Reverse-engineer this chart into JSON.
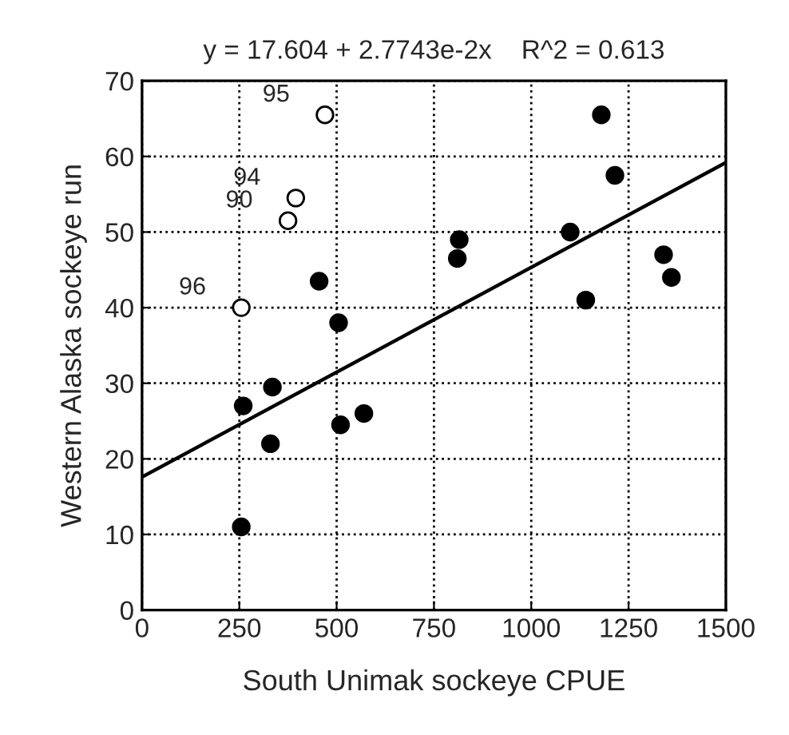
{
  "chart_data": {
    "type": "scatter",
    "title": "y = 17.604 + 2.7743e-2x    R^2 = 0.613",
    "xlabel": "South Unimak sockeye CPUE",
    "ylabel": "Western Alaska sockeye run",
    "series": [
      {
        "color": "#ffffff",
        "x": [
          470,
          395,
          375,
          255
        ],
        "values": [
          65.5,
          54.5,
          51.5,
          40
        ]
      },
      {
        "color": "#000000",
        "x": [
          455,
          505,
          260,
          335,
          330,
          510,
          570,
          255,
          810,
          815,
          1100,
          1180,
          1215,
          1140,
          1340,
          1360
        ],
        "values": [
          43.5,
          38,
          27,
          29.5,
          22,
          24.5,
          26,
          11,
          46.5,
          49,
          50,
          65.5,
          57.5,
          41,
          47,
          44
        ]
      },
      {
        "type": "line",
        "marker": "none",
        "color": "#000000",
        "x": [
          0,
          1500
        ],
        "values": [
          17.6,
          59.2
        ]
      }
    ],
    "annotations": [
      {
        "text": "95",
        "x": 470,
        "y": 65.5
      },
      {
        "text": "94",
        "x": 395,
        "y": 54.5
      },
      {
        "text": "90",
        "x": 375,
        "y": 51.5
      },
      {
        "text": "96",
        "x": 255,
        "y": 40
      }
    ],
    "xlim": [
      0,
      1500
    ],
    "xticks": [
      0,
      250,
      500,
      750,
      1000,
      1250,
      1500
    ],
    "ylim": [
      0,
      70
    ],
    "yticks": [
      0,
      10,
      20,
      30,
      40,
      50,
      60,
      70
    ],
    "grid": true,
    "marker": "circle",
    "line_style": "solid",
    "legend": false
  }
}
